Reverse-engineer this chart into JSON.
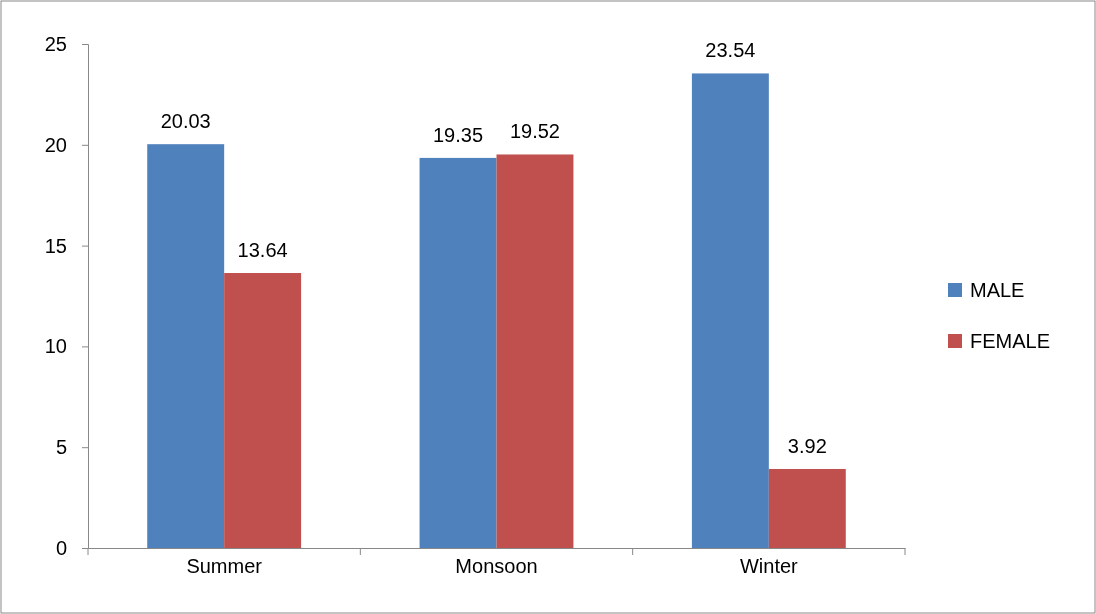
{
  "chart_data": {
    "type": "bar",
    "categories": [
      "Summer",
      "Monsoon",
      "Winter"
    ],
    "series": [
      {
        "name": "MALE",
        "color": "#4f81bd",
        "values": [
          20.03,
          19.35,
          23.54
        ]
      },
      {
        "name": "FEMALE",
        "color": "#c0504d",
        "values": [
          13.64,
          19.52,
          3.92
        ]
      }
    ],
    "ylim": [
      0,
      25
    ],
    "yticks": [
      0,
      5,
      10,
      15,
      20,
      25
    ],
    "grid": false,
    "legend": "right",
    "data_labels": true
  }
}
